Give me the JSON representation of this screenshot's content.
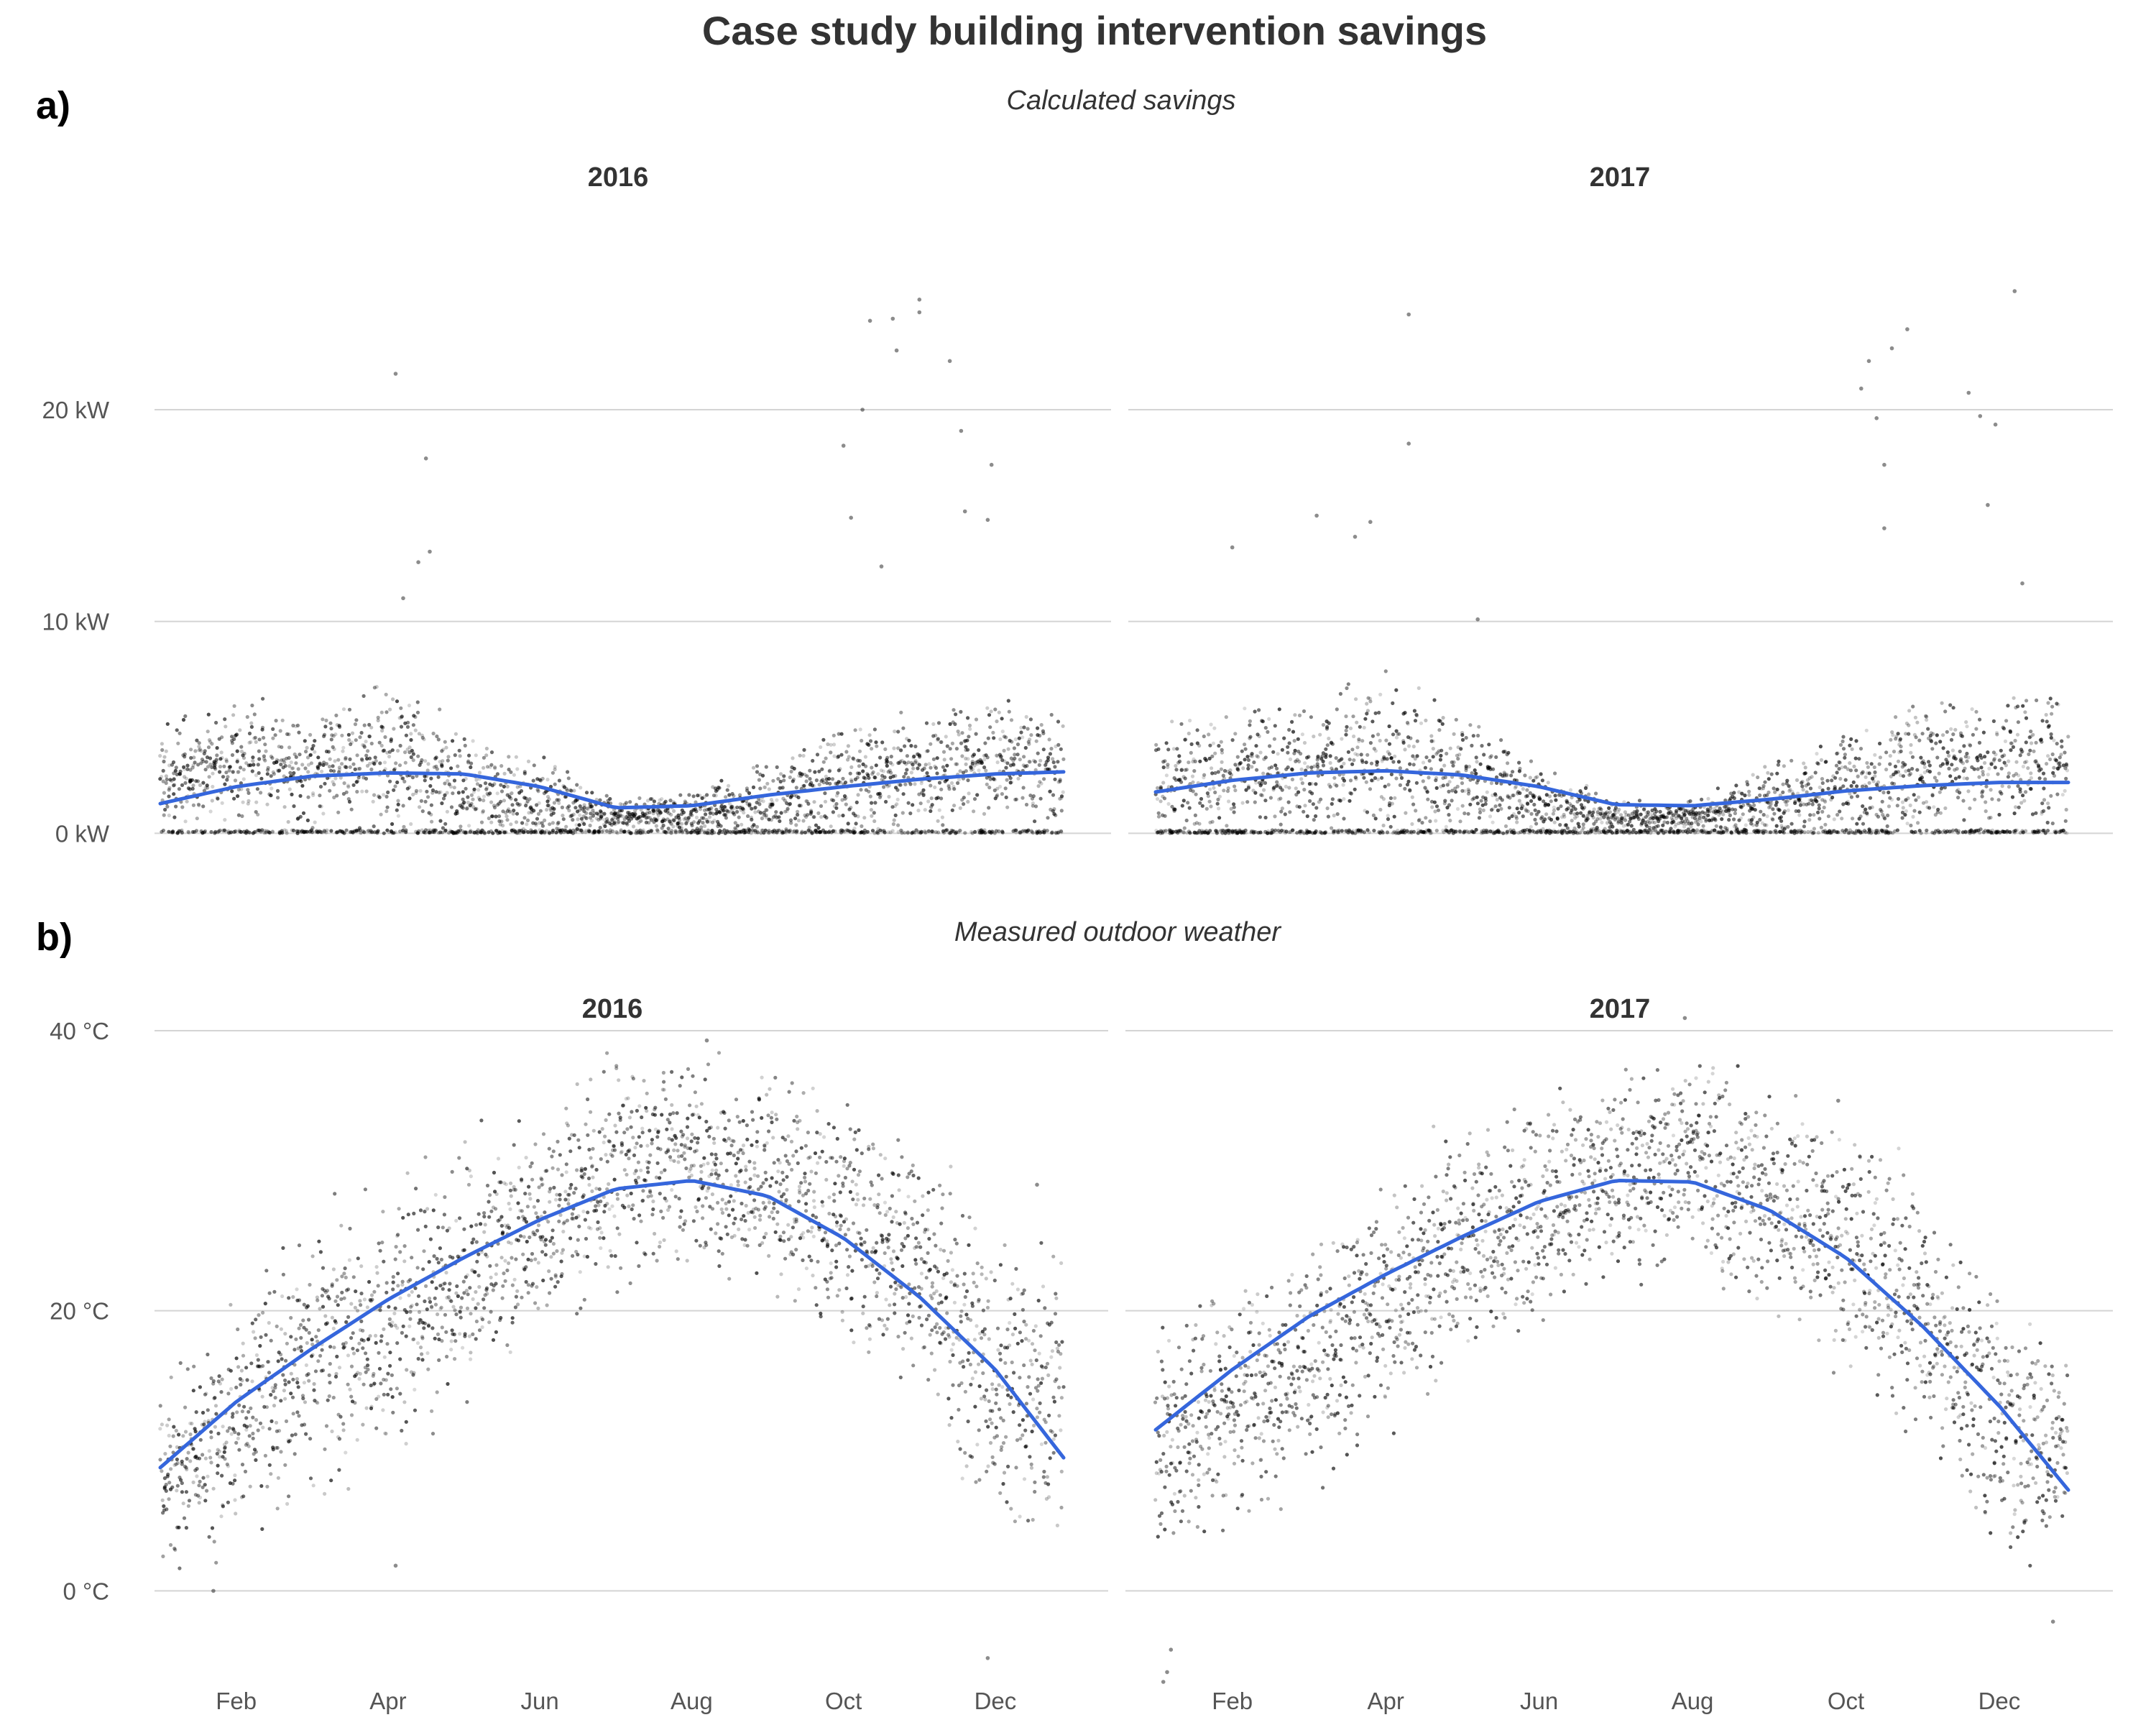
{
  "title": "Case study building intervention savings",
  "panels": [
    {
      "letter": "a)",
      "subtitle": "Calculated savings"
    },
    {
      "letter": "b)",
      "subtitle": "Measured outdoor weather"
    }
  ],
  "colors": {
    "smooth": "#3566dc",
    "points": "#000000",
    "grid": "#d4d4d4"
  },
  "chart_data": [
    {
      "type": "scatter",
      "panel": "a",
      "subtitle": "Calculated savings",
      "facets": [
        "2016",
        "2017"
      ],
      "xlabel": "",
      "ylabel": "",
      "x_ticks": [
        "Feb",
        "Apr",
        "Jun",
        "Aug",
        "Oct",
        "Dec"
      ],
      "x_tick_months": [
        2,
        4,
        6,
        8,
        10,
        12
      ],
      "show_x_ticks": false,
      "y_ticks": [
        0,
        10,
        20
      ],
      "y_tick_labels": [
        "0 kW",
        "10 kW",
        "20 kW"
      ],
      "ylim": [
        -0.6,
        25.5
      ],
      "grid": true,
      "series": [
        {
          "year": "2016",
          "smooth": [
            [
              1,
              1.4
            ],
            [
              2,
              2.2
            ],
            [
              3,
              2.7
            ],
            [
              4,
              2.85
            ],
            [
              5,
              2.8
            ],
            [
              6,
              2.2
            ],
            [
              7,
              1.2
            ],
            [
              8,
              1.3
            ],
            [
              9,
              1.8
            ],
            [
              10,
              2.2
            ],
            [
              11,
              2.55
            ],
            [
              12,
              2.8
            ],
            [
              12.9,
              2.9
            ]
          ],
          "points_profile": [
            [
              1,
              2.5,
              3.0
            ],
            [
              2,
              3.5,
              3.5
            ],
            [
              3,
              3.0,
              3.0
            ],
            [
              4,
              3.5,
              4.5
            ],
            [
              5,
              2.0,
              3.0
            ],
            [
              6,
              1.5,
              2.5
            ],
            [
              7,
              0.8,
              0.8
            ],
            [
              8,
              1.0,
              1.0
            ],
            [
              9,
              1.5,
              2.0
            ],
            [
              10,
              2.5,
              3.5
            ],
            [
              11,
              3.0,
              3.0
            ],
            [
              12,
              3.5,
              3.0
            ],
            [
              12.9,
              3.0,
              3.0
            ]
          ],
          "outliers": [
            [
              4.1,
              21.7
            ],
            [
              4.5,
              17.7
            ],
            [
              4.55,
              13.3
            ],
            [
              4.4,
              12.8
            ],
            [
              4.2,
              11.1
            ],
            [
              10.0,
              18.3
            ],
            [
              10.1,
              14.9
            ],
            [
              10.25,
              20.0
            ],
            [
              10.35,
              24.2
            ],
            [
              10.65,
              24.3
            ],
            [
              10.7,
              22.8
            ],
            [
              10.5,
              12.6
            ],
            [
              11.0,
              25.2
            ],
            [
              11.0,
              24.6
            ],
            [
              11.4,
              22.3
            ],
            [
              11.55,
              19.0
            ],
            [
              11.6,
              15.2
            ],
            [
              11.95,
              17.4
            ],
            [
              11.9,
              14.8
            ]
          ]
        },
        {
          "year": "2017",
          "smooth": [
            [
              1,
              1.95
            ],
            [
              2,
              2.5
            ],
            [
              3,
              2.85
            ],
            [
              4,
              2.95
            ],
            [
              5,
              2.75
            ],
            [
              6,
              2.2
            ],
            [
              7,
              1.35
            ],
            [
              8,
              1.3
            ],
            [
              9,
              1.6
            ],
            [
              10,
              2.0
            ],
            [
              11,
              2.25
            ],
            [
              12,
              2.4
            ],
            [
              12.9,
              2.4
            ]
          ],
          "points_profile": [
            [
              1,
              2.5,
              3.0
            ],
            [
              2,
              3.0,
              3.0
            ],
            [
              3,
              3.0,
              3.5
            ],
            [
              4,
              3.5,
              4.5
            ],
            [
              5,
              2.5,
              3.5
            ],
            [
              6,
              1.5,
              2.0
            ],
            [
              7,
              0.8,
              0.8
            ],
            [
              8,
              0.8,
              0.8
            ],
            [
              9,
              1.5,
              2.0
            ],
            [
              10,
              2.0,
              3.0
            ],
            [
              11,
              3.0,
              3.5
            ],
            [
              12,
              3.5,
              3.5
            ],
            [
              12.9,
              3.5,
              3.5
            ]
          ],
          "outliers": [
            [
              2.0,
              13.5
            ],
            [
              3.1,
              15.0
            ],
            [
              3.6,
              14.0
            ],
            [
              3.8,
              14.7
            ],
            [
              4.3,
              24.5
            ],
            [
              4.3,
              18.4
            ],
            [
              5.2,
              10.1
            ],
            [
              10.2,
              21.0
            ],
            [
              10.3,
              22.3
            ],
            [
              10.4,
              19.6
            ],
            [
              10.6,
              22.9
            ],
            [
              10.8,
              23.8
            ],
            [
              10.5,
              17.4
            ],
            [
              10.5,
              14.4
            ],
            [
              11.6,
              20.8
            ],
            [
              11.75,
              19.7
            ],
            [
              11.85,
              15.5
            ],
            [
              11.95,
              19.3
            ],
            [
              12.2,
              25.6
            ],
            [
              12.3,
              11.8
            ]
          ]
        }
      ]
    },
    {
      "type": "scatter",
      "panel": "b",
      "subtitle": "Measured outdoor weather",
      "facets": [
        "2016",
        "2017"
      ],
      "xlabel": "",
      "ylabel": "",
      "x_ticks": [
        "Feb",
        "Apr",
        "Jun",
        "Aug",
        "Oct",
        "Dec"
      ],
      "x_tick_months": [
        2,
        4,
        6,
        8,
        10,
        12
      ],
      "show_x_ticks": true,
      "y_ticks": [
        0,
        20,
        40
      ],
      "y_tick_labels": [
        "0 °C",
        "20 °C",
        "40 °C"
      ],
      "ylim": [
        -6.5,
        42
      ],
      "grid": true,
      "series": [
        {
          "year": "2016",
          "smooth": [
            [
              1,
              8.8
            ],
            [
              2,
              13.5
            ],
            [
              3,
              17.3
            ],
            [
              4,
              20.8
            ],
            [
              5,
              23.8
            ],
            [
              6,
              26.5
            ],
            [
              7,
              28.7
            ],
            [
              8,
              29.3
            ],
            [
              9,
              28.2
            ],
            [
              10,
              25.2
            ],
            [
              11,
              21.0
            ],
            [
              12,
              15.8
            ],
            [
              12.9,
              9.5
            ]
          ],
          "points_profile": [
            [
              1,
              8,
              6
            ],
            [
              2,
              12,
              8
            ],
            [
              3,
              17,
              9
            ],
            [
              4,
              19,
              9
            ],
            [
              5,
              23,
              8
            ],
            [
              6,
              26,
              7
            ],
            [
              7,
              30,
              7
            ],
            [
              8,
              31,
              7
            ],
            [
              9,
              29,
              7
            ],
            [
              10,
              26,
              8
            ],
            [
              11,
              23,
              8
            ],
            [
              12,
              15,
              10
            ],
            [
              12.9,
              14,
              9
            ]
          ],
          "outliers": [
            [
              1.7,
              0.0
            ],
            [
              4.1,
              1.8
            ],
            [
              11.9,
              -4.8
            ],
            [
              12.55,
              29.0
            ],
            [
              8.2,
              39.3
            ]
          ]
        },
        {
          "year": "2017",
          "smooth": [
            [
              1,
              11.5
            ],
            [
              2,
              15.8
            ],
            [
              3,
              19.6
            ],
            [
              4,
              22.6
            ],
            [
              5,
              25.3
            ],
            [
              6,
              27.8
            ],
            [
              7,
              29.3
            ],
            [
              8,
              29.2
            ],
            [
              9,
              27.2
            ],
            [
              10,
              23.8
            ],
            [
              11,
              18.9
            ],
            [
              12,
              13.2
            ],
            [
              12.9,
              7.2
            ]
          ],
          "points_profile": [
            [
              1,
              10,
              8
            ],
            [
              2,
              13,
              8
            ],
            [
              3,
              17,
              8
            ],
            [
              4,
              20,
              8
            ],
            [
              5,
              25,
              8
            ],
            [
              6,
              27,
              7
            ],
            [
              7,
              30,
              7
            ],
            [
              8,
              31,
              7
            ],
            [
              9,
              28,
              7
            ],
            [
              10,
              24,
              8
            ],
            [
              11,
              20,
              8
            ],
            [
              12,
              12,
              9
            ],
            [
              12.9,
              10,
              7
            ]
          ],
          "outliers": [
            [
              1.1,
              -6.5
            ],
            [
              1.15,
              -5.8
            ],
            [
              1.2,
              -4.2
            ],
            [
              7.9,
              40.9
            ],
            [
              9.9,
              35.0
            ],
            [
              12.7,
              -2.2
            ]
          ]
        }
      ]
    }
  ]
}
